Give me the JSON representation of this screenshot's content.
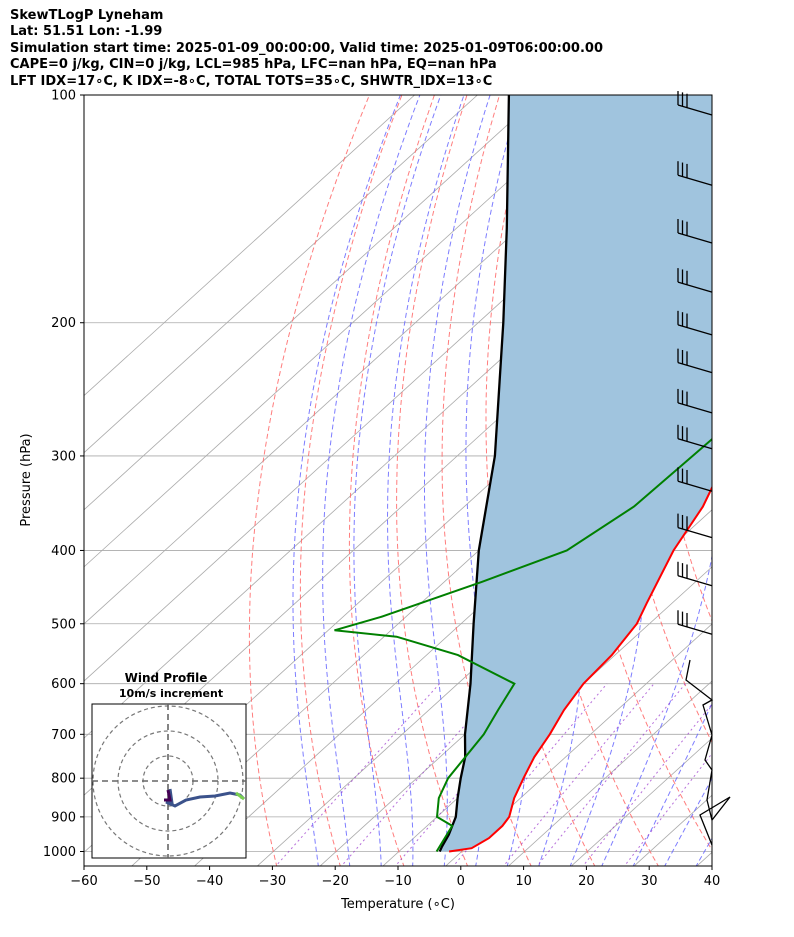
{
  "header": {
    "title": "SkewTLogP Lyneham",
    "location": "Lat: 51.51   Lon: -1.99",
    "times": "Simulation start time: 2025-01-09_00:00:00, Valid time: 2025-01-09T06:00:00.00",
    "indices_1": "CAPE=0 j/kg, CIN=0 j/kg, LCL=985 hPa, LFC=nan hPa, EQ=nan hPa",
    "indices_2": "LFT IDX=17∘C, K IDX=-8∘C, TOTAL TOTS=35∘C, SHWTR_IDX=13∘C"
  },
  "chart_data": {
    "type": "line",
    "subtype": "skew-t log-p",
    "xlabel": "Temperature (∘C)",
    "ylabel": "Pressure (hPa)",
    "xlim": [
      -60,
      40
    ],
    "ylim": [
      1050,
      100
    ],
    "y_scale": "log",
    "x_ticks": [
      "−60",
      "−50",
      "−40",
      "−30",
      "−20",
      "−10",
      "0",
      "10",
      "20",
      "30",
      "40"
    ],
    "y_ticks": [
      "100",
      "200",
      "300",
      "400",
      "500",
      "600",
      "700",
      "800",
      "900",
      "1000"
    ],
    "grid": true,
    "colors": {
      "temperature": "#ff0000",
      "dewpoint": "#008000",
      "parcel": "#000000",
      "shade": "#a0c4de",
      "dry_adiabat": "#ff6666",
      "moist_adiabat": "#6666ff",
      "mixing_ratio": "#9933cc",
      "isotherm": "#aaaaaa"
    },
    "series": [
      {
        "role": "temperature",
        "points": [
          [
            1000,
            -2
          ],
          [
            990,
            1
          ],
          [
            960,
            2
          ],
          [
            925,
            2
          ],
          [
            900,
            1.5
          ],
          [
            850,
            -1
          ],
          [
            800,
            -3
          ],
          [
            750,
            -5
          ],
          [
            700,
            -6.5
          ],
          [
            650,
            -8.5
          ],
          [
            600,
            -10
          ],
          [
            550,
            -10.5
          ],
          [
            500,
            -12
          ],
          [
            470,
            -14
          ],
          [
            400,
            -19
          ],
          [
            350,
            -22
          ],
          [
            300,
            -27
          ],
          [
            250,
            -32
          ],
          [
            200,
            -39
          ],
          [
            150,
            -50
          ],
          [
            100,
            -59
          ]
        ]
      },
      {
        "role": "dewpoint",
        "points": [
          [
            1000,
            -4
          ],
          [
            925,
            -6
          ],
          [
            900,
            -10
          ],
          [
            850,
            -13
          ],
          [
            800,
            -15
          ],
          [
            700,
            -17
          ],
          [
            650,
            -19
          ],
          [
            600,
            -21
          ],
          [
            550,
            -35
          ],
          [
            520,
            -48
          ],
          [
            510,
            -59
          ],
          [
            490,
            -54
          ],
          [
            440,
            -44
          ],
          [
            400,
            -36
          ],
          [
            350,
            -33
          ],
          [
            300,
            -32.5
          ],
          [
            250,
            -32
          ],
          [
            200,
            -38
          ],
          [
            150,
            -46
          ],
          [
            130,
            -51
          ],
          [
            100,
            -60
          ]
        ]
      },
      {
        "role": "parcel",
        "points": [
          [
            1000,
            -3.5
          ],
          [
            985,
            -4
          ],
          [
            950,
            -5
          ],
          [
            900,
            -7
          ],
          [
            850,
            -10
          ],
          [
            800,
            -13
          ],
          [
            750,
            -16
          ],
          [
            700,
            -20
          ],
          [
            600,
            -28
          ],
          [
            500,
            -38
          ],
          [
            400,
            -50
          ],
          [
            300,
            -64
          ],
          [
            200,
            -86
          ],
          [
            150,
            -102
          ],
          [
            100,
            -125
          ]
        ]
      }
    ],
    "wind_barbs": {
      "note": "barbs at right side",
      "levels_hPa": [
        105,
        130,
        155,
        180,
        205,
        230,
        260,
        290,
        330,
        380,
        440,
        510
      ]
    },
    "inset": {
      "title": "Wind Profile",
      "subtitle": "10m/s increment",
      "type": "hodograph"
    }
  }
}
